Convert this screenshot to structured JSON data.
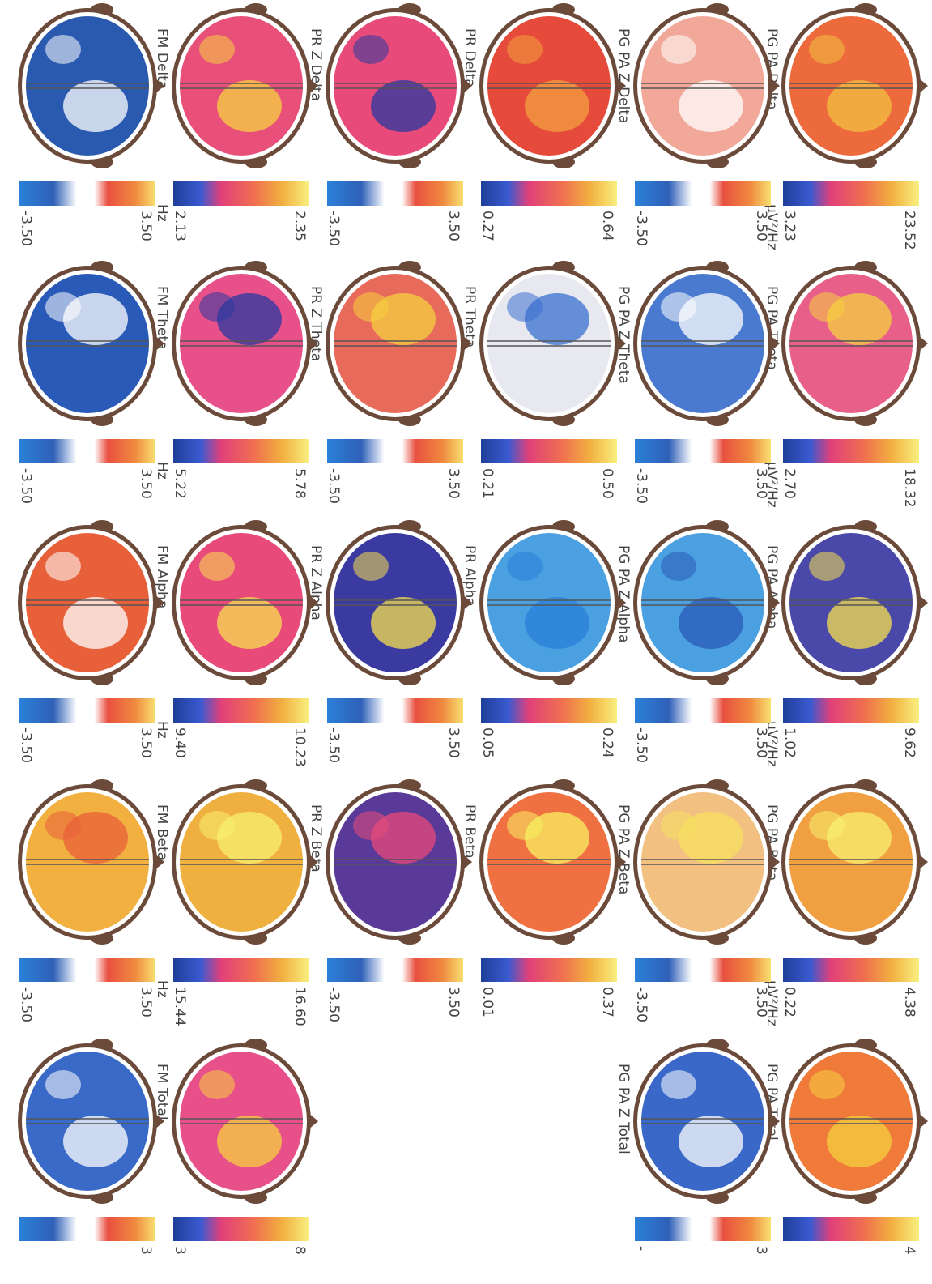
{
  "rows": [
    {
      "maps": [
        {
          "label": "PG PA Delta",
          "min": "3.23",
          "max": "23.52",
          "unit": "µV²/Hz"
        },
        {
          "label": "PG PA Theta",
          "min": "2.70",
          "max": "18.32",
          "unit": "µV²/Hz"
        },
        {
          "label": "PG PA Alpha",
          "min": "1.02",
          "max": "9.62",
          "unit": "µV²/Hz"
        },
        {
          "label": "PG PA Beta",
          "min": "0.22",
          "max": "4.38",
          "unit": "µV²/Hz"
        },
        {
          "label": "PG PA Total",
          "max": "4"
        }
      ]
    },
    {
      "maps": [
        {
          "label": "PG PA Z Delta",
          "min": "-3.50",
          "max": "3.50"
        },
        {
          "label": "PG PA Z Theta",
          "min": "-3.50",
          "max": "3.50"
        },
        {
          "label": "PG PA Z Alpha",
          "min": "-3.50",
          "max": "3.50"
        },
        {
          "label": "PG PA Z Beta",
          "min": "-3.50",
          "max": "3.50"
        },
        {
          "label": "PG PA Z Total",
          "min": "-",
          "max": "3"
        }
      ]
    },
    {
      "maps": [
        {
          "label": "PR Delta",
          "min": "0.27",
          "max": "0.64"
        },
        {
          "label": "PR Theta",
          "min": "0.21",
          "max": "0.50"
        },
        {
          "label": "PR Alpha",
          "min": "0.05",
          "max": "0.24"
        },
        {
          "label": "PR Beta",
          "min": "0.01",
          "max": "0.37"
        },
        null
      ]
    },
    {
      "maps": [
        {
          "label": "PR Z Delta",
          "min": "-3.50",
          "max": "3.50"
        },
        {
          "label": "PR Z Theta",
          "min": "-3.50",
          "max": "3.50"
        },
        {
          "label": "PR Z Alpha",
          "min": "-3.50",
          "max": "3.50"
        },
        {
          "label": "PR Z Beta",
          "min": "-3.50",
          "max": "3.50"
        },
        null
      ]
    },
    {
      "maps": [
        {
          "label": "FM Delta",
          "min": "2.13",
          "max": "2.35",
          "unit": "Hz"
        },
        {
          "label": "FM Theta",
          "min": "5.22",
          "max": "5.78",
          "unit": "Hz"
        },
        {
          "label": "FM Alpha",
          "min": "9.40",
          "max": "10.23",
          "unit": "Hz"
        },
        {
          "label": "FM Beta",
          "min": "15.44",
          "max": "16.60",
          "unit": "Hz"
        },
        {
          "label": "FM Total",
          "min": "3",
          "max": "8"
        }
      ]
    },
    {
      "maps": [
        {
          "min": "-3.50",
          "max": "3.50"
        },
        {
          "min": "-3.50",
          "max": "3.50"
        },
        {
          "min": "-3.50",
          "max": "3.50"
        },
        {
          "min": "-3.50",
          "max": "3.50"
        },
        {
          "max": "3"
        }
      ]
    }
  ]
}
